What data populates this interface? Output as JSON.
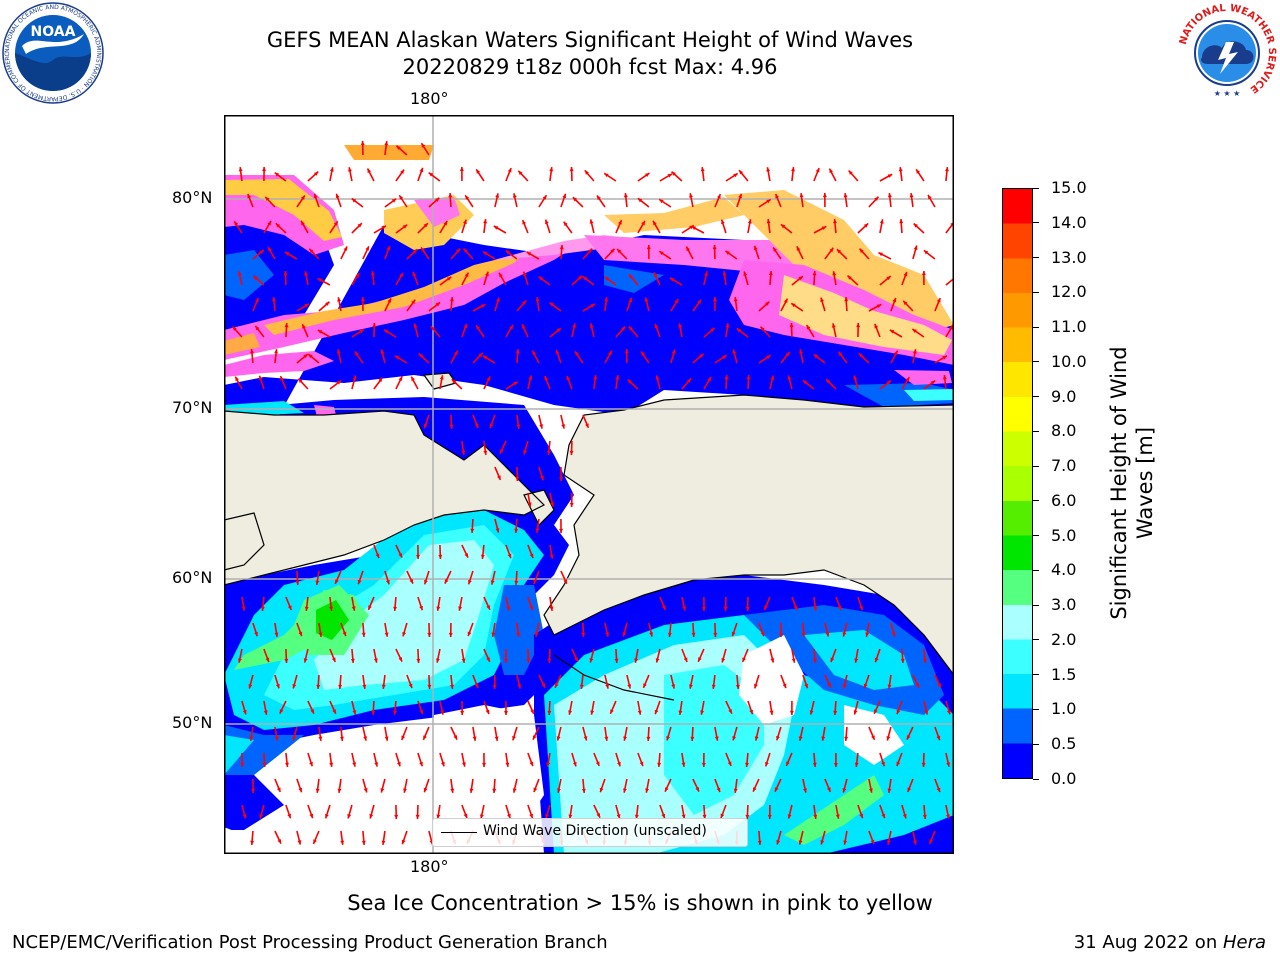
{
  "title": {
    "line1": "GEFS MEAN Alaskan Waters Significant Height of Wind Waves",
    "line2": "20220829 t18z 000h fcst   Max: 4.96"
  },
  "logos": {
    "left": {
      "icon": "noaa-logo-icon",
      "text": "NOAA",
      "ring_text": "NATIONAL OCEANIC AND ATMOSPHERIC ADMINISTRATION · U.S. DEPARTMENT OF COMMERCE"
    },
    "right": {
      "icon": "nws-logo-icon",
      "ring_text": "NATIONAL WEATHER SERVICE"
    }
  },
  "map": {
    "lon_labels": {
      "top": "180°",
      "bottom": "180°"
    },
    "lat_labels": [
      "80°N",
      "70°N",
      "60°N",
      "50°N"
    ],
    "legend": {
      "label": "Wind Wave Direction (unscaled)"
    },
    "colors": {
      "land": "#efede0",
      "gridlines": "#b0b0b0",
      "arrows": "#ff0000",
      "coast": "#000000"
    }
  },
  "colorbar": {
    "label": "Significant Height of Wind Waves [m]",
    "ticks": [
      "0.0",
      "0.5",
      "1.0",
      "1.5",
      "2.0",
      "3.0",
      "4.0",
      "5.0",
      "6.0",
      "7.0",
      "8.0",
      "9.0",
      "10.0",
      "11.0",
      "12.0",
      "13.0",
      "14.0",
      "15.0"
    ],
    "colors": [
      "#0000ff",
      "#0064ff",
      "#00e6ff",
      "#3cffff",
      "#aaffff",
      "#55ff80",
      "#00e600",
      "#55ee00",
      "#aaff00",
      "#ccff00",
      "#ffff00",
      "#ffe600",
      "#ffbb00",
      "#ff9900",
      "#ff7700",
      "#ff4400",
      "#ff0000"
    ]
  },
  "note": "Sea Ice Concentration > 15% is shown in pink to yellow",
  "footer": {
    "left": "NCEP/EMC/Verification Post Processing Product Generation Branch",
    "right_date": "31 Aug 2022 on ",
    "right_machine": "Hera"
  }
}
